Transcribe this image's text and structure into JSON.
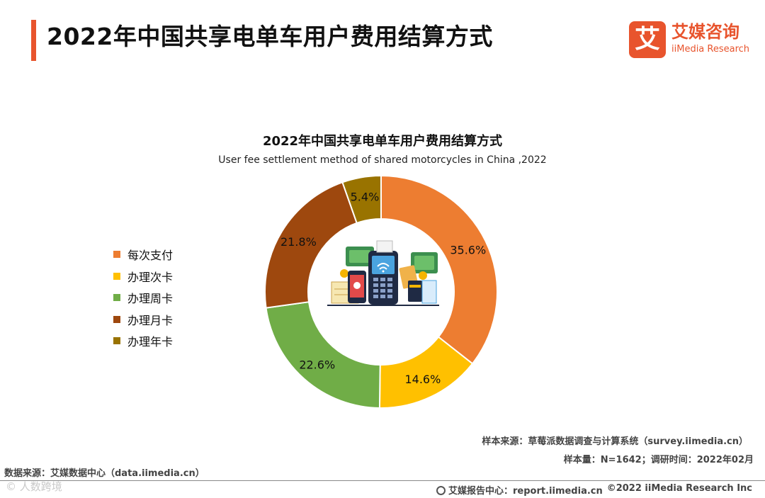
{
  "header": {
    "title": "2022年中国共享电单车用户费用结算方式",
    "brand_cn": "艾媒咨询",
    "brand_en": "iiMedia Research",
    "brand_logo_char": "艾",
    "accent_color": "#e8542d"
  },
  "chart_data": {
    "type": "pie",
    "variant": "donut",
    "title": "2022年中国共享电单车用户费用结算方式",
    "subtitle": "User fee settlement method of shared motorcycles in China ,2022",
    "categories": [
      "每次支付",
      "办理次卡",
      "办理周卡",
      "办理月卡",
      "办理年卡"
    ],
    "values": [
      35.6,
      14.6,
      22.6,
      21.8,
      5.4
    ],
    "labels": [
      "35.6%",
      "14.6%",
      "22.6%",
      "21.8%",
      "5.4%"
    ],
    "colors": [
      "#ed7d31",
      "#ffc000",
      "#70ad47",
      "#9e480e",
      "#997300"
    ],
    "legend_position": "left",
    "center_icon": "payment-terminal-illustration"
  },
  "footer": {
    "sample_source": "样本来源：草莓派数据调查与计算系统（survey.iimedia.cn）",
    "sample_size": "样本量：N=1642；调研时间：2022年02月",
    "data_source": "数据来源：艾媒数据中心（data.iimedia.cn）",
    "watermark": "© 人数跨境",
    "report_center": "艾媒报告中心：report.iimedia.cn",
    "copyright": "©2022  iiMedia Research  Inc"
  }
}
